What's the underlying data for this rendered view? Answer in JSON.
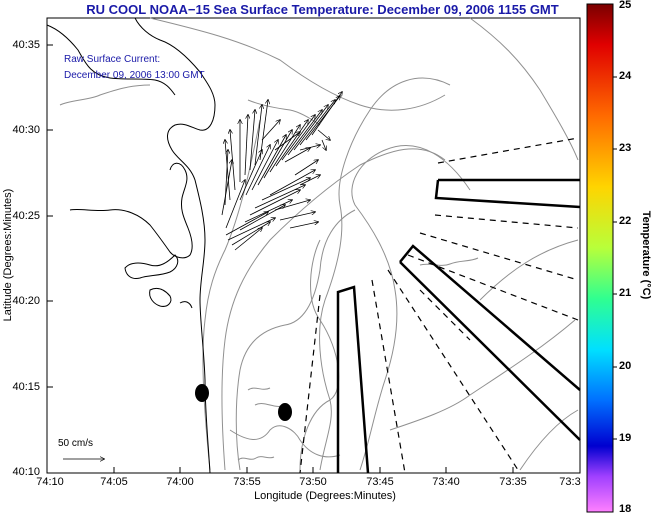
{
  "title": "RU COOL  NOAA−15  Sea Surface Temperature:  December 09, 2006 1155 GMT",
  "legend": {
    "line1": "Raw Surface Current:",
    "line2": "December 09, 2006 13:00 GMT"
  },
  "axes": {
    "xlabel": "Longitude (Degrees:Minutes)",
    "ylabel": "Latitude (Degrees:Minutes)",
    "xticks": [
      "74:10",
      "74:05",
      "74:00",
      "73:55",
      "73:50",
      "73:45",
      "73:40",
      "73:35",
      "73:3"
    ],
    "yticks": [
      "40:35",
      "40:30",
      "40:25",
      "40:20",
      "40:15",
      "40:10"
    ]
  },
  "colorbar": {
    "label": "Temperature (°C)",
    "ticks": [
      "25",
      "24",
      "23",
      "22",
      "21",
      "20",
      "19",
      "18"
    ],
    "range": [
      18,
      25
    ]
  },
  "scale_label": "50 cm/s",
  "colors": {
    "title": "#1a1aa8",
    "coast": "#000000",
    "bathymetry": "#808080"
  }
}
